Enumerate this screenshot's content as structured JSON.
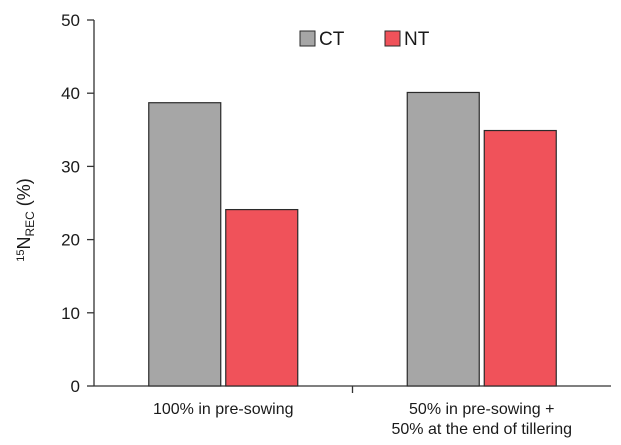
{
  "chart_data": {
    "type": "bar",
    "title": "",
    "ylabel": {
      "sup": "15",
      "main": "N",
      "sub": "REC",
      "suffix": " (%)"
    },
    "xlabel": "",
    "categories": [
      [
        "100% in pre-sowing"
      ],
      [
        "50% in pre-sowing +",
        "50% at the end of tillering"
      ]
    ],
    "series": [
      {
        "name": "CT",
        "color": "#a6a6a6",
        "values": [
          38.7,
          40.1
        ]
      },
      {
        "name": "NT",
        "color": "#f0525a",
        "values": [
          24.1,
          34.9
        ]
      }
    ],
    "ylim": [
      0,
      50
    ],
    "yticks": [
      0,
      10,
      20,
      30,
      40,
      50
    ],
    "grid": false,
    "legend": "top-center"
  }
}
